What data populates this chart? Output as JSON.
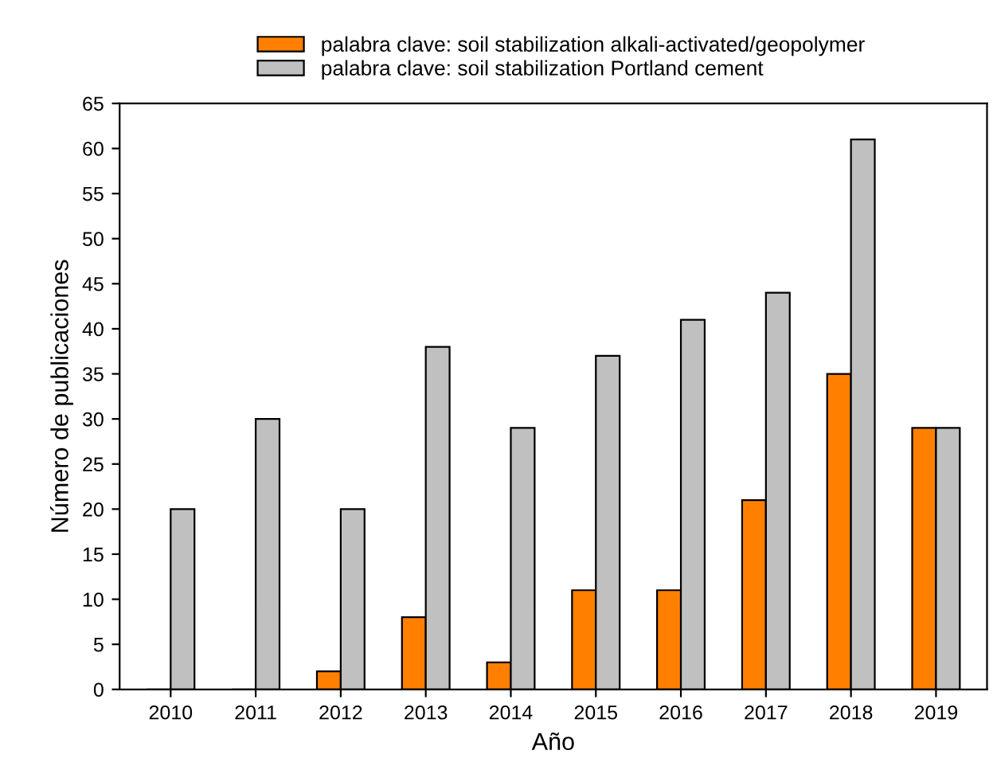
{
  "chart_data": {
    "type": "bar",
    "xlabel": "Año",
    "ylabel": "Número de publicaciones",
    "categories": [
      "2010",
      "2011",
      "2012",
      "2013",
      "2014",
      "2015",
      "2016",
      "2017",
      "2018",
      "2019"
    ],
    "series": [
      {
        "name": "palabra clave: soil stabilization alkali-activated/geopolymer",
        "color": "#ff8000",
        "values": [
          0,
          0,
          2,
          8,
          3,
          11,
          11,
          21,
          35,
          29
        ]
      },
      {
        "name": "palabra clave: soil stabilization Portland cement",
        "color": "#c0c0c0",
        "values": [
          20,
          30,
          20,
          38,
          29,
          37,
          41,
          44,
          61,
          29
        ]
      }
    ],
    "ylim": [
      0,
      65
    ],
    "yticks": [
      0,
      5,
      10,
      15,
      20,
      25,
      30,
      35,
      40,
      45,
      50,
      55,
      60,
      65
    ],
    "grid": false,
    "legend": "top"
  }
}
